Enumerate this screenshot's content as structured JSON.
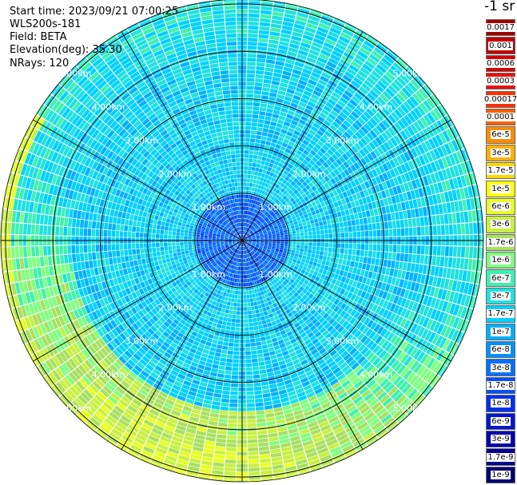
{
  "header": {
    "start_time": "Start time: 2023/09/21 07:00:25",
    "instrument": "WLS200s-181",
    "field": "Field: BETA",
    "elevation": "Elevation(deg): 35.30",
    "nrays": "NRays: 120"
  },
  "colorbar": {
    "unit": "-1 sr",
    "levels": [
      {
        "label": "0.0017",
        "color": "#a00000"
      },
      {
        "label": "0.001",
        "color": "#c00000"
      },
      {
        "label": "0.0006",
        "color": "#d40000"
      },
      {
        "label": "0.0003",
        "color": "#ec1010"
      },
      {
        "label": "0.00017",
        "color": "#ff3000"
      },
      {
        "label": "0.0001",
        "color": "#ff6000"
      },
      {
        "label": "6e-5",
        "color": "#ff8c00"
      },
      {
        "label": "3e-5",
        "color": "#ffb000"
      },
      {
        "label": "1.7e-5",
        "color": "#ffd800"
      },
      {
        "label": "1e-5",
        "color": "#ffff00"
      },
      {
        "label": "6e-6",
        "color": "#e8ff20"
      },
      {
        "label": "3e-6",
        "color": "#c8f040"
      },
      {
        "label": "1.7e-6",
        "color": "#a8e060"
      },
      {
        "label": "1e-6",
        "color": "#80ff80"
      },
      {
        "label": "6e-7",
        "color": "#40f0b0"
      },
      {
        "label": "3e-7",
        "color": "#20e0e0"
      },
      {
        "label": "1.7e-7",
        "color": "#00d0ff"
      },
      {
        "label": "1e-7",
        "color": "#00b0ff"
      },
      {
        "label": "6e-8",
        "color": "#0090ff"
      },
      {
        "label": "3e-8",
        "color": "#0070ff"
      },
      {
        "label": "1.7e-8",
        "color": "#0050ff"
      },
      {
        "label": "1e-8",
        "color": "#0030ee"
      },
      {
        "label": "6e-9",
        "color": "#0018d0"
      },
      {
        "label": "3e-9",
        "color": "#0000b0"
      },
      {
        "label": "1.7e-9",
        "color": "#000090"
      },
      {
        "label": "1e-9",
        "color": "#000070"
      }
    ]
  },
  "chart_data": {
    "type": "heatmap",
    "projection": "polar (PPI scan)",
    "rings": [
      1.0,
      2.0,
      3.0,
      4.0,
      5.0
    ],
    "ring_labels": [
      "1.00km",
      "2.00km",
      "3.00km",
      "4.00km",
      "5.00km"
    ],
    "range_max_km": 5.1,
    "n_rays": 120,
    "radial_lines_deg": [
      0,
      30,
      60,
      90,
      120,
      150,
      180,
      210,
      240,
      270,
      300,
      330
    ],
    "background_level": "1.7e-7",
    "regions": [
      {
        "description": "near field 0-1 km",
        "level": "1.7e-8 to 1e-7"
      },
      {
        "description": "mid field 1-4 km",
        "level": "1e-7 to 3e-7"
      },
      {
        "description": "far field south/south-west 4-5 km",
        "level": "1e-6 to 3e-6"
      },
      {
        "description": "far west edge",
        "level": "6e-6"
      }
    ]
  }
}
